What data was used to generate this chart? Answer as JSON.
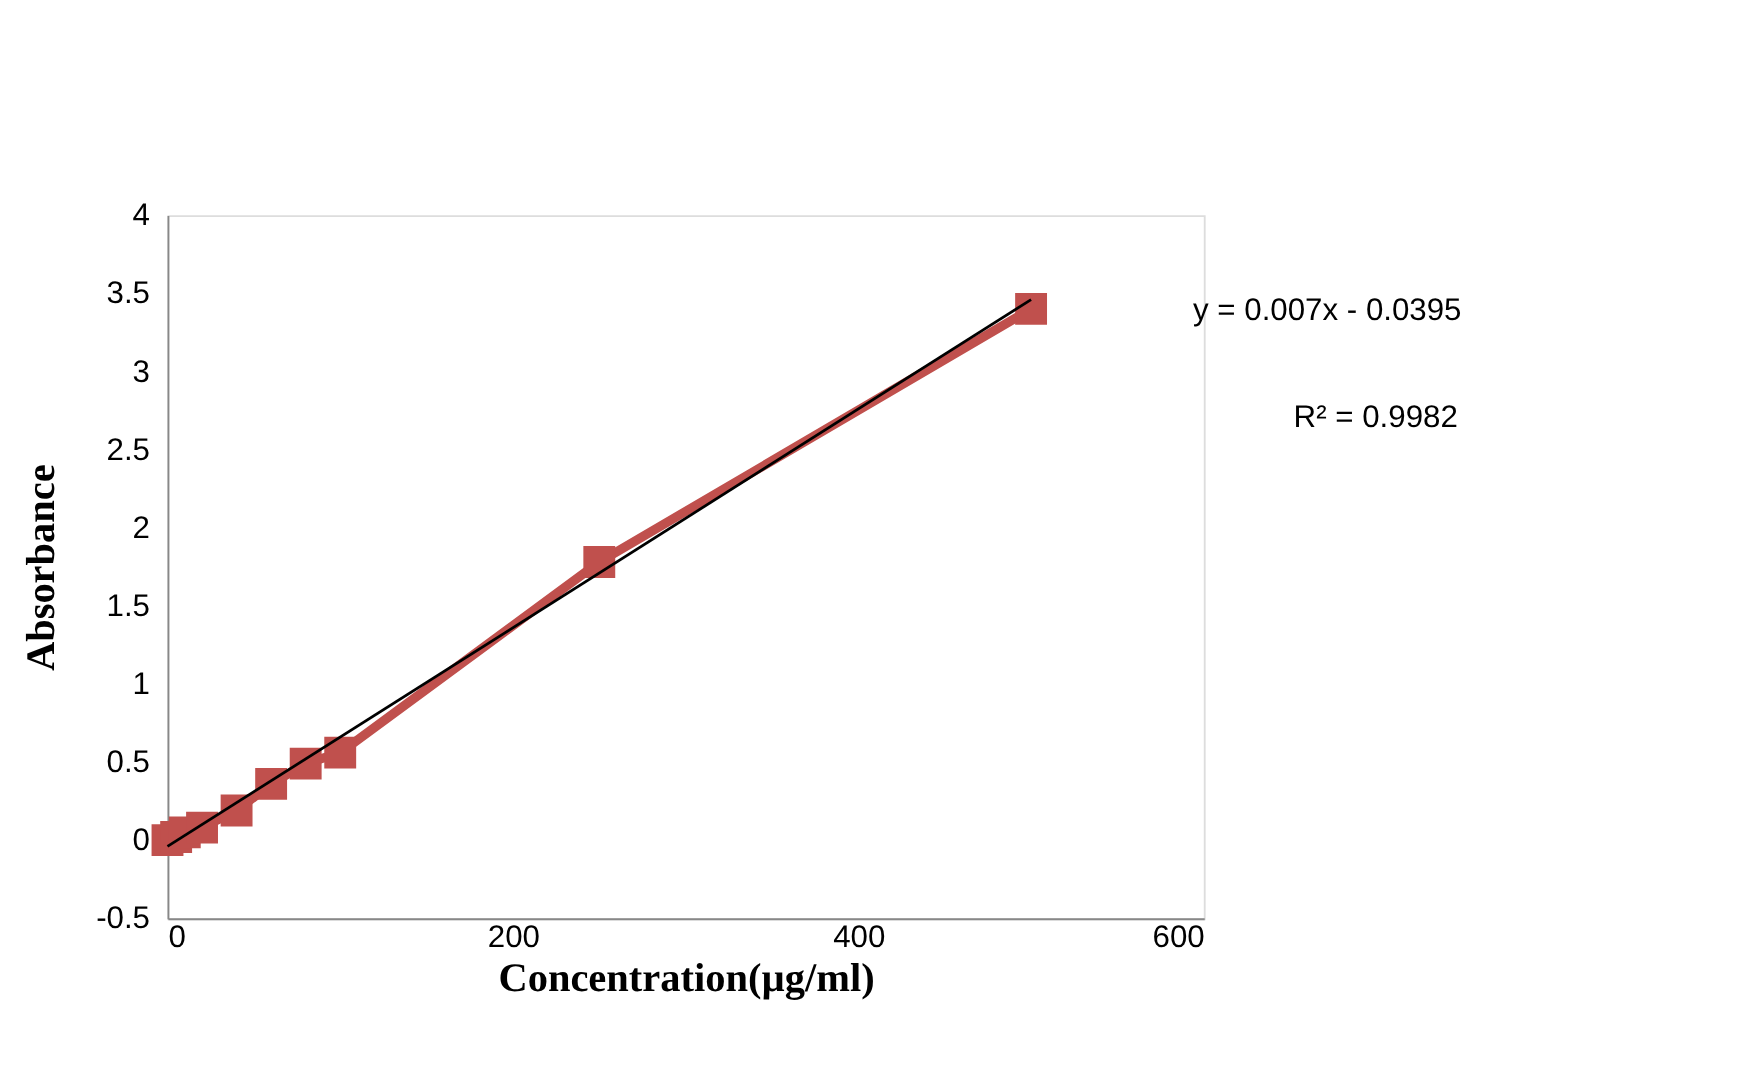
{
  "chart_data": {
    "type": "line",
    "xlabel": "Concentration(µg/ml)",
    "ylabel": "Absorbance",
    "x": [
      0,
      5,
      10,
      20,
      40,
      60,
      80,
      100,
      250,
      500
    ],
    "series": [
      {
        "color": "#c0504d",
        "values": [
          0.0,
          0.02,
          0.05,
          0.08,
          0.19,
          0.36,
          0.49,
          0.56,
          1.78,
          3.4
        ],
        "marker": "square",
        "line_style": "solid"
      },
      {
        "type": "line",
        "color": "#000000",
        "x": [
          0,
          500
        ],
        "values": [
          -0.04,
          3.46
        ],
        "marker": "none",
        "line_style": "solid"
      }
    ],
    "xlim": [
      0,
      600
    ],
    "xticks": [
      0,
      200,
      400,
      600
    ],
    "ylim": [
      -0.5,
      4
    ],
    "yticks": [
      -0.5,
      0,
      0.5,
      1,
      1.5,
      2,
      2.5,
      3,
      3.5,
      4
    ],
    "grid": false,
    "annotations": [
      "y = 0.007x - 0.0395",
      "R² = 0.9982"
    ]
  }
}
